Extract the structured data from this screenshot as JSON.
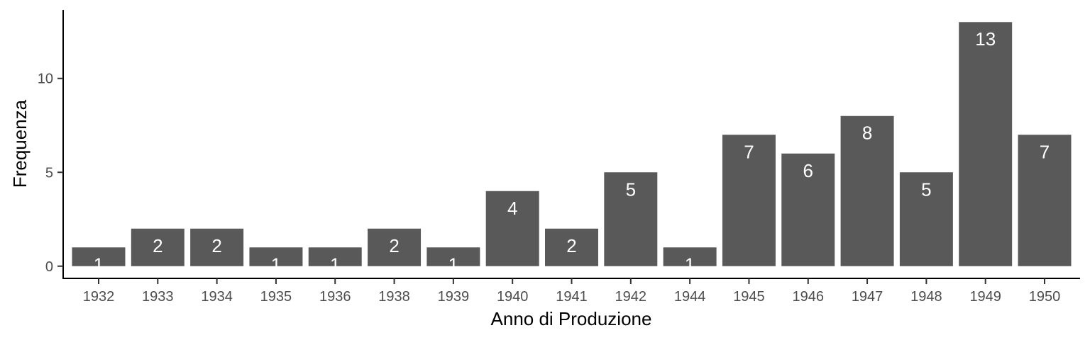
{
  "chart_data": {
    "type": "bar",
    "xlabel": "Anno di Produzione",
    "ylabel": "Frequenza",
    "categories": [
      "1932",
      "1933",
      "1934",
      "1935",
      "1936",
      "1938",
      "1939",
      "1940",
      "1941",
      "1942",
      "1944",
      "1945",
      "1946",
      "1947",
      "1948",
      "1949",
      "1950"
    ],
    "values": [
      1,
      2,
      2,
      1,
      1,
      2,
      1,
      4,
      2,
      5,
      1,
      7,
      6,
      8,
      5,
      13,
      7
    ],
    "yticks": [
      0,
      5,
      10
    ],
    "ylim": [
      -0.65,
      13.65
    ],
    "grid": false,
    "legend": "none",
    "bar_color": "#595959",
    "label_color": "#ffffff"
  }
}
